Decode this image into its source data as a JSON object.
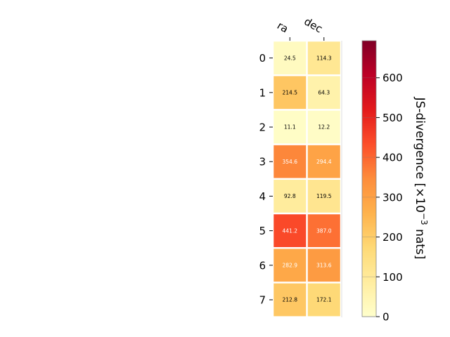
{
  "chart_data": {
    "type": "heatmap",
    "columns": [
      "ra",
      "dec"
    ],
    "rows": [
      "0",
      "1",
      "2",
      "3",
      "4",
      "5",
      "6",
      "7"
    ],
    "values": [
      [
        24.5,
        114.3
      ],
      [
        214.5,
        64.3
      ],
      [
        11.1,
        12.2
      ],
      [
        354.6,
        294.4
      ],
      [
        92.8,
        119.5
      ],
      [
        441.2,
        387.0
      ],
      [
        282.9,
        313.6
      ],
      [
        212.8,
        172.1
      ]
    ],
    "cell_labels": [
      [
        "24.5",
        "114.3"
      ],
      [
        "214.5",
        "64.3"
      ],
      [
        "11.1",
        "12.2"
      ],
      [
        "354.6",
        "294.4"
      ],
      [
        "92.8",
        "119.5"
      ],
      [
        "441.2",
        "387.0"
      ],
      [
        "282.9",
        "313.6"
      ],
      [
        "212.8",
        "172.1"
      ]
    ],
    "colormap": "YlOrRd",
    "colorbar": {
      "label_main": "JS-divergence [×10",
      "label_exp": "−3",
      "label_tail": " nats]",
      "range": [
        0,
        693
      ],
      "ticks": [
        0,
        100,
        200,
        300,
        400,
        500,
        600
      ],
      "tick_labels": [
        "0",
        "100",
        "200",
        "300",
        "400",
        "500",
        "600"
      ]
    },
    "colors": {
      "cell_border": "#ffffff",
      "light_text": "#ffffff",
      "dark_text": "#000000"
    }
  }
}
